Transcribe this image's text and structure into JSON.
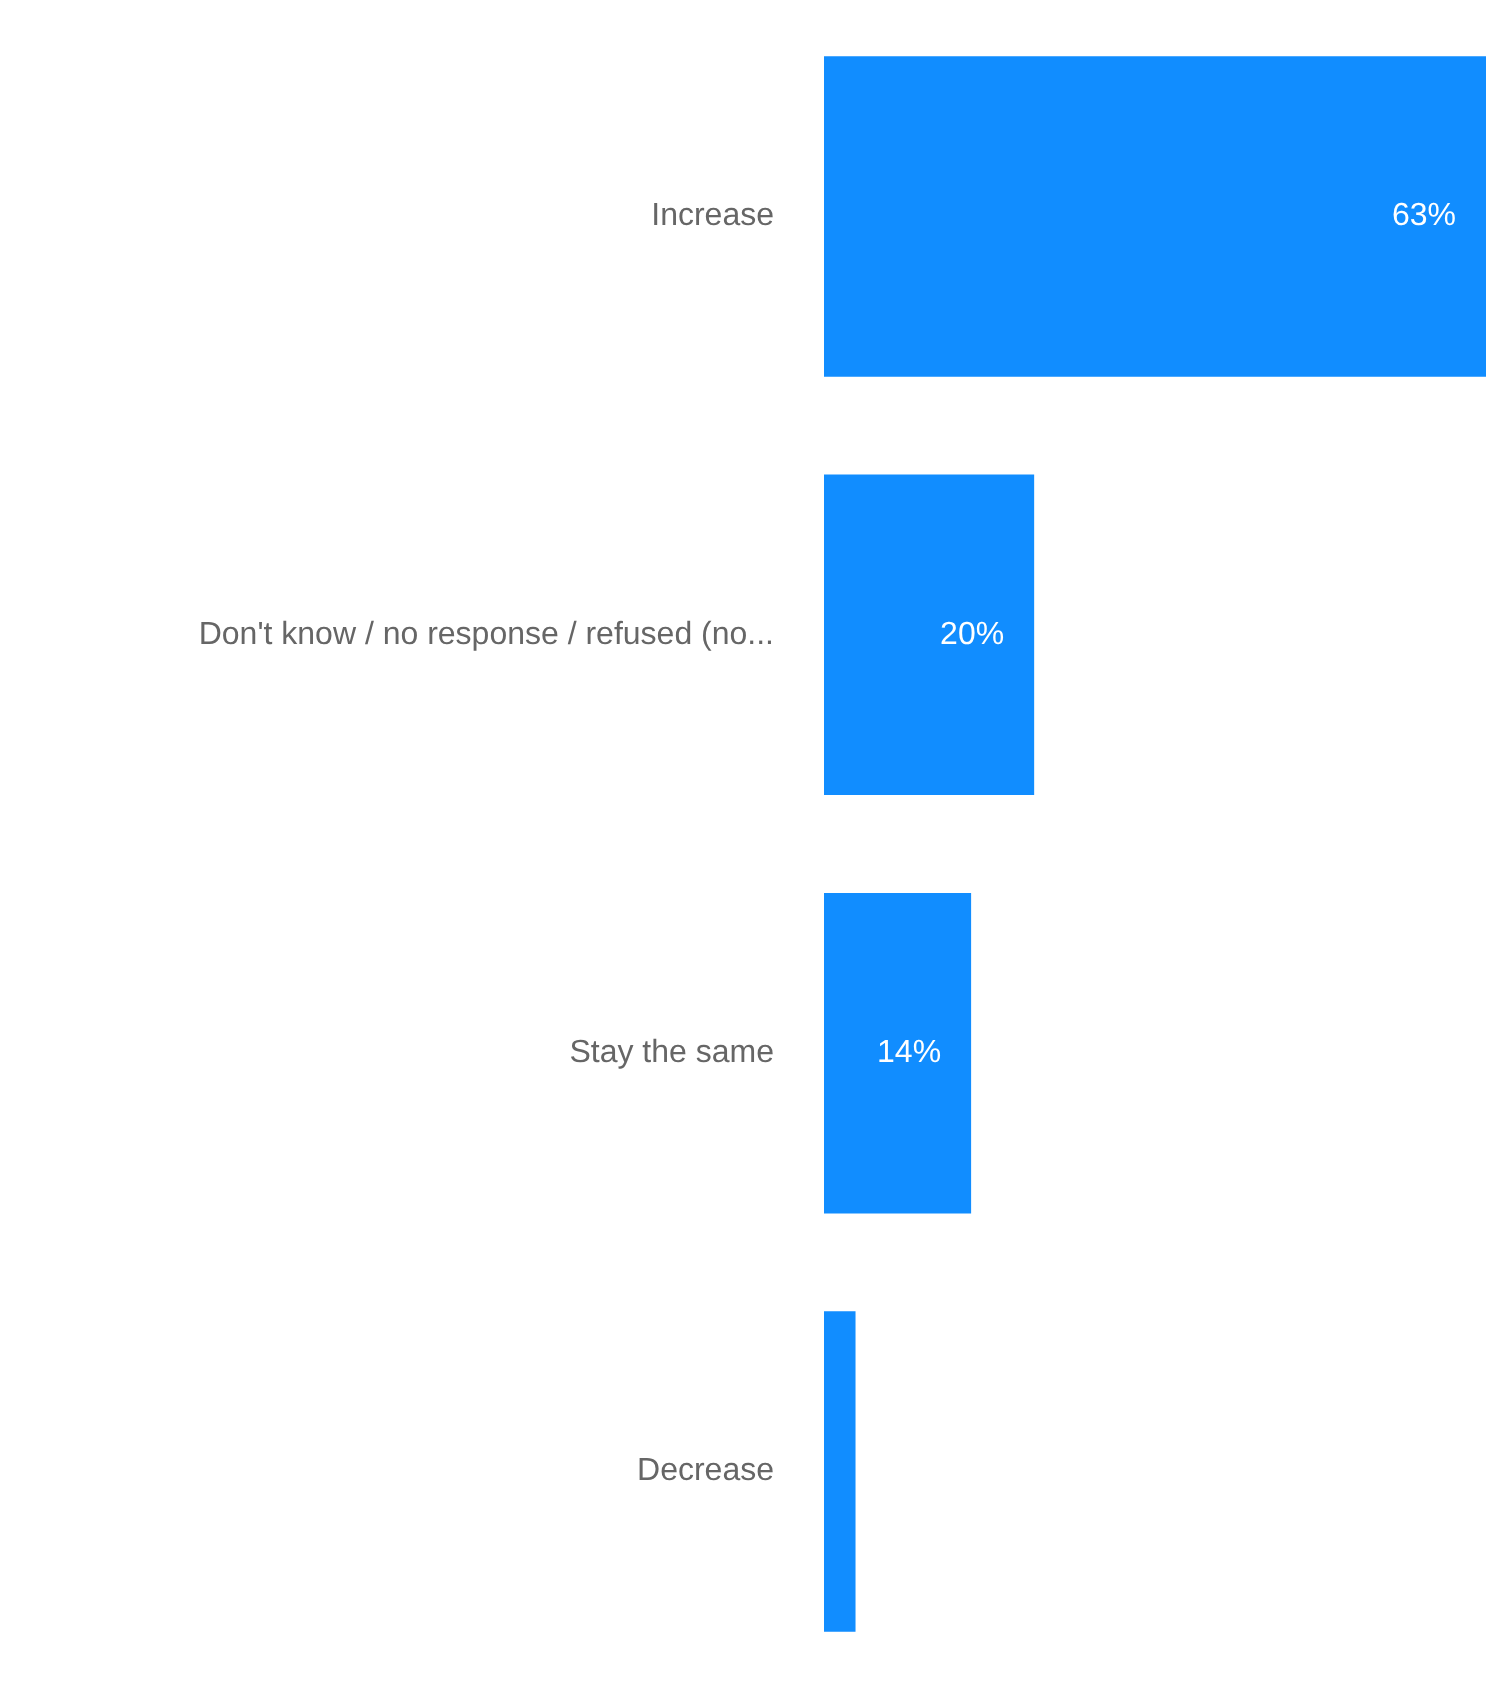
{
  "chart_data": {
    "type": "bar",
    "orientation": "horizontal",
    "categories": [
      "Increase",
      "Don't know / no response / refused (no...",
      "Stay the same",
      "Decrease"
    ],
    "values": [
      63,
      20,
      14,
      3
    ],
    "value_labels": [
      "63%",
      "20%",
      "14%",
      null
    ],
    "color": "#118dff",
    "legend": false
  }
}
